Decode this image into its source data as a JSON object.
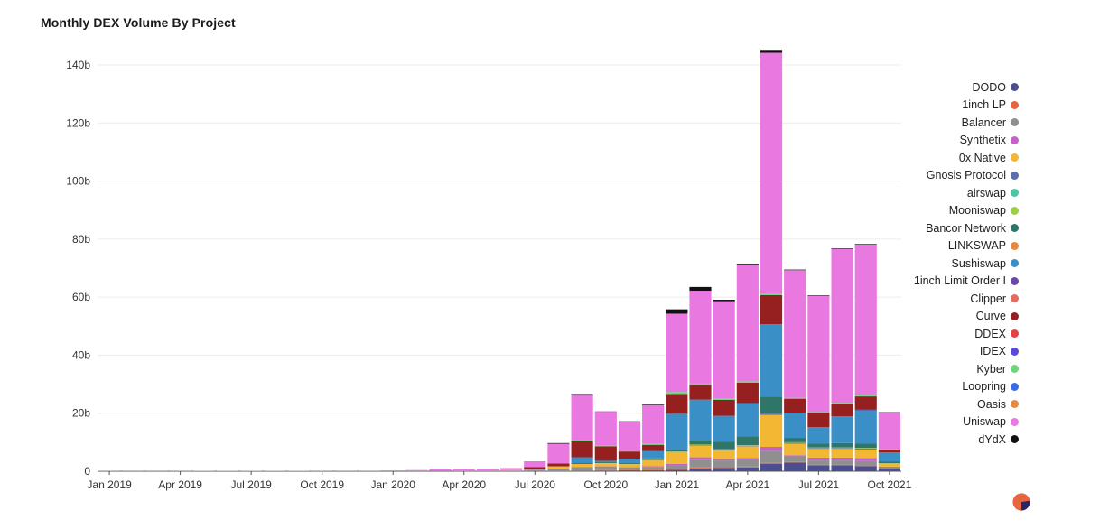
{
  "chart_data": {
    "type": "bar",
    "stacked": true,
    "title": "Monthly DEX Volume By Project",
    "xlabel": "",
    "ylabel": "",
    "ylim": [
      0,
      140
    ],
    "yticks": [
      0,
      20,
      40,
      60,
      80,
      100,
      120,
      140
    ],
    "ytick_labels": [
      "0",
      "20b",
      "40b",
      "60b",
      "80b",
      "100b",
      "120b",
      "140b"
    ],
    "xtick_labels": [
      "Jan 2019",
      "Apr 2019",
      "Jul 2019",
      "Oct 2019",
      "Jan 2020",
      "Apr 2020",
      "Jul 2020",
      "Oct 2020",
      "Jan 2021",
      "Apr 2021",
      "Jul 2021",
      "Oct 2021"
    ],
    "grid": true,
    "legend_position": "right",
    "categories": [
      "2019-01",
      "2019-02",
      "2019-03",
      "2019-04",
      "2019-05",
      "2019-06",
      "2019-07",
      "2019-08",
      "2019-09",
      "2019-10",
      "2019-11",
      "2019-12",
      "2020-01",
      "2020-02",
      "2020-03",
      "2020-04",
      "2020-05",
      "2020-06",
      "2020-07",
      "2020-08",
      "2020-09",
      "2020-10",
      "2020-11",
      "2020-12",
      "2021-01",
      "2021-02",
      "2021-03",
      "2021-04",
      "2021-05",
      "2021-06",
      "2021-07",
      "2021-08",
      "2021-09",
      "2021-10"
    ],
    "series": [
      {
        "name": "DODO",
        "color": "#4c4f8f",
        "values": [
          0,
          0,
          0,
          0,
          0,
          0,
          0,
          0,
          0,
          0,
          0,
          0,
          0,
          0,
          0,
          0,
          0,
          0,
          0,
          0,
          0.1,
          0.2,
          0.3,
          0.3,
          0.5,
          1.0,
          1.1,
          1.3,
          2.5,
          3.0,
          2.0,
          2.0,
          1.8,
          0.8
        ]
      },
      {
        "name": "1inch LP",
        "color": "#e8663d",
        "values": [
          0,
          0,
          0,
          0,
          0,
          0,
          0,
          0,
          0,
          0,
          0,
          0,
          0,
          0,
          0,
          0,
          0,
          0,
          0,
          0,
          0.1,
          0.2,
          0.2,
          0.2,
          0.3,
          0.3,
          0.3,
          0.3,
          0.4,
          0.2,
          0.2,
          0.2,
          0.2,
          0.1
        ]
      },
      {
        "name": "Balancer",
        "color": "#8f8f8f",
        "values": [
          0,
          0,
          0,
          0,
          0,
          0,
          0,
          0,
          0,
          0,
          0,
          0,
          0,
          0,
          0.1,
          0.1,
          0.1,
          0.2,
          0.5,
          0.8,
          1.2,
          1.2,
          0.8,
          1.0,
          1.2,
          2.5,
          2.3,
          2.5,
          4.0,
          1.8,
          1.5,
          1.5,
          1.5,
          0.5
        ]
      },
      {
        "name": "Synthetix",
        "color": "#c463c4",
        "values": [
          0,
          0,
          0,
          0,
          0,
          0,
          0,
          0,
          0,
          0,
          0,
          0,
          0,
          0,
          0,
          0,
          0,
          0,
          0.1,
          0.1,
          0.1,
          0.1,
          0.1,
          0.2,
          0.5,
          1.0,
          0.5,
          0.5,
          1.5,
          0.5,
          1.0,
          1.0,
          1.0,
          0.2
        ]
      },
      {
        "name": "0x Native",
        "color": "#f2b733",
        "values": [
          0,
          0,
          0,
          0,
          0,
          0,
          0,
          0,
          0,
          0,
          0,
          0,
          0,
          0,
          0,
          0.1,
          0.1,
          0.2,
          0.3,
          0.8,
          1.0,
          1.0,
          1.0,
          2.0,
          4.0,
          4.0,
          3.0,
          4.0,
          11.0,
          4.0,
          3.0,
          3.0,
          3.0,
          1.0
        ]
      },
      {
        "name": "Gnosis Protocol",
        "color": "#5b6fa8",
        "values": [
          0,
          0,
          0,
          0,
          0,
          0,
          0,
          0,
          0,
          0,
          0,
          0,
          0,
          0,
          0,
          0,
          0,
          0,
          0,
          0,
          0,
          0,
          0,
          0.1,
          0.1,
          0.2,
          0.2,
          0.2,
          0.5,
          0.3,
          0.3,
          0.3,
          0.3,
          0.1
        ]
      },
      {
        "name": "airswap",
        "color": "#4ec3a5",
        "values": [
          0,
          0,
          0,
          0,
          0,
          0,
          0,
          0,
          0,
          0,
          0,
          0,
          0,
          0,
          0,
          0,
          0,
          0,
          0,
          0,
          0,
          0,
          0,
          0,
          0,
          0,
          0,
          0,
          0,
          0,
          0,
          0,
          0,
          0
        ]
      },
      {
        "name": "Mooniswap",
        "color": "#9ccf45",
        "values": [
          0,
          0,
          0,
          0,
          0,
          0,
          0,
          0,
          0,
          0,
          0,
          0,
          0,
          0,
          0,
          0,
          0,
          0,
          0,
          0,
          0,
          0.1,
          0.1,
          0.1,
          0.2,
          0.2,
          0.2,
          0.2,
          0.3,
          0.2,
          0.2,
          0.2,
          0.2,
          0.1
        ]
      },
      {
        "name": "Bancor Network",
        "color": "#2f7668",
        "values": [
          0,
          0,
          0,
          0,
          0,
          0,
          0,
          0,
          0,
          0,
          0,
          0,
          0,
          0,
          0,
          0,
          0,
          0,
          0,
          0,
          0.3,
          0.3,
          0.3,
          0.5,
          0.5,
          1.5,
          2.5,
          3.0,
          5.5,
          1.5,
          1.3,
          1.5,
          1.5,
          0.6
        ]
      },
      {
        "name": "LINKSWAP",
        "color": "#e8893d",
        "values": [
          0,
          0,
          0,
          0,
          0,
          0,
          0,
          0,
          0,
          0,
          0,
          0,
          0,
          0,
          0,
          0,
          0,
          0,
          0,
          0,
          0,
          0,
          0,
          0,
          0,
          0,
          0,
          0,
          0,
          0,
          0,
          0,
          0,
          0
        ]
      },
      {
        "name": "Sushiswap",
        "color": "#3a8fc7",
        "values": [
          0,
          0,
          0,
          0,
          0,
          0,
          0,
          0,
          0,
          0,
          0,
          0,
          0,
          0,
          0,
          0,
          0,
          0,
          0,
          0,
          2.0,
          0.5,
          1.5,
          2.5,
          12.5,
          14.0,
          9.0,
          11.5,
          25.0,
          8.5,
          5.7,
          9.2,
          11.5,
          3.0
        ]
      },
      {
        "name": "1inch Limit Order I",
        "color": "#6a4aa8",
        "values": [
          0,
          0,
          0,
          0,
          0,
          0,
          0,
          0,
          0,
          0,
          0,
          0,
          0,
          0,
          0,
          0,
          0,
          0,
          0,
          0,
          0,
          0,
          0,
          0,
          0,
          0,
          0,
          0,
          0,
          0,
          0,
          0,
          0.3,
          0.1
        ]
      },
      {
        "name": "Clipper",
        "color": "#e86a5e",
        "values": [
          0,
          0,
          0,
          0,
          0,
          0,
          0,
          0,
          0,
          0,
          0,
          0,
          0,
          0,
          0,
          0,
          0,
          0,
          0,
          0,
          0,
          0,
          0,
          0,
          0,
          0,
          0,
          0,
          0,
          0,
          0,
          0,
          0,
          0
        ]
      },
      {
        "name": "Curve",
        "color": "#962020",
        "values": [
          0,
          0,
          0,
          0,
          0,
          0,
          0,
          0,
          0,
          0,
          0,
          0,
          0,
          0,
          0,
          0,
          0,
          0,
          0.5,
          1.0,
          5.5,
          5.0,
          2.5,
          2.2,
          6.5,
          5.0,
          5.5,
          7.0,
          10.0,
          5.0,
          5.0,
          4.5,
          4.5,
          1.0
        ]
      },
      {
        "name": "DDEX",
        "color": "#e84040",
        "values": [
          0,
          0,
          0,
          0,
          0,
          0,
          0,
          0,
          0,
          0,
          0,
          0,
          0,
          0,
          0,
          0,
          0,
          0,
          0,
          0,
          0,
          0,
          0,
          0,
          0,
          0,
          0,
          0,
          0,
          0,
          0,
          0,
          0,
          0
        ]
      },
      {
        "name": "IDEX",
        "color": "#5a4ad8",
        "values": [
          0,
          0,
          0,
          0,
          0,
          0,
          0,
          0,
          0,
          0,
          0,
          0,
          0,
          0,
          0,
          0,
          0,
          0,
          0,
          0,
          0,
          0,
          0,
          0,
          0,
          0,
          0,
          0,
          0,
          0,
          0,
          0,
          0,
          0
        ]
      },
      {
        "name": "Kyber",
        "color": "#6fd47a",
        "values": [
          0,
          0,
          0,
          0,
          0,
          0,
          0,
          0,
          0,
          0,
          0,
          0,
          0,
          0,
          0,
          0,
          0,
          0,
          0,
          0,
          0.3,
          0.2,
          0.2,
          0.5,
          1.0,
          0.5,
          0.5,
          0.5,
          0.5,
          0.3,
          0.2,
          0.2,
          0.3,
          0.1
        ]
      },
      {
        "name": "Loopring",
        "color": "#3a6ae8",
        "values": [
          0,
          0,
          0,
          0,
          0,
          0,
          0,
          0,
          0,
          0,
          0,
          0,
          0,
          0,
          0,
          0,
          0,
          0,
          0,
          0,
          0,
          0,
          0,
          0,
          0,
          0,
          0,
          0,
          0,
          0,
          0,
          0,
          0,
          0
        ]
      },
      {
        "name": "Oasis",
        "color": "#e8893d",
        "values": [
          0,
          0,
          0,
          0,
          0,
          0,
          0,
          0,
          0,
          0,
          0,
          0,
          0,
          0,
          0,
          0,
          0,
          0,
          0,
          0,
          0,
          0,
          0,
          0,
          0,
          0,
          0,
          0,
          0,
          0,
          0,
          0,
          0,
          0
        ]
      },
      {
        "name": "Uniswap",
        "color": "#e978e0",
        "values": [
          0.1,
          0.1,
          0.1,
          0.1,
          0.15,
          0.15,
          0.15,
          0.15,
          0.15,
          0.2,
          0.2,
          0.2,
          0.3,
          0.4,
          0.6,
          0.6,
          0.5,
          0.7,
          1.8,
          6.8,
          15.5,
          11.7,
          10.0,
          13.2,
          27.0,
          32.0,
          33.5,
          40.0,
          83.0,
          44.0,
          40.0,
          53.0,
          52.0,
          12.7
        ]
      },
      {
        "name": "dYdX",
        "color": "#111111",
        "values": [
          0,
          0,
          0,
          0,
          0,
          0,
          0,
          0,
          0,
          0,
          0,
          0,
          0,
          0,
          0,
          0,
          0,
          0,
          0.1,
          0.2,
          0.2,
          0.1,
          0.2,
          0.2,
          1.5,
          1.3,
          0.5,
          0.5,
          1.0,
          0.2,
          0.2,
          0.2,
          0.2,
          0.1
        ]
      }
    ]
  }
}
